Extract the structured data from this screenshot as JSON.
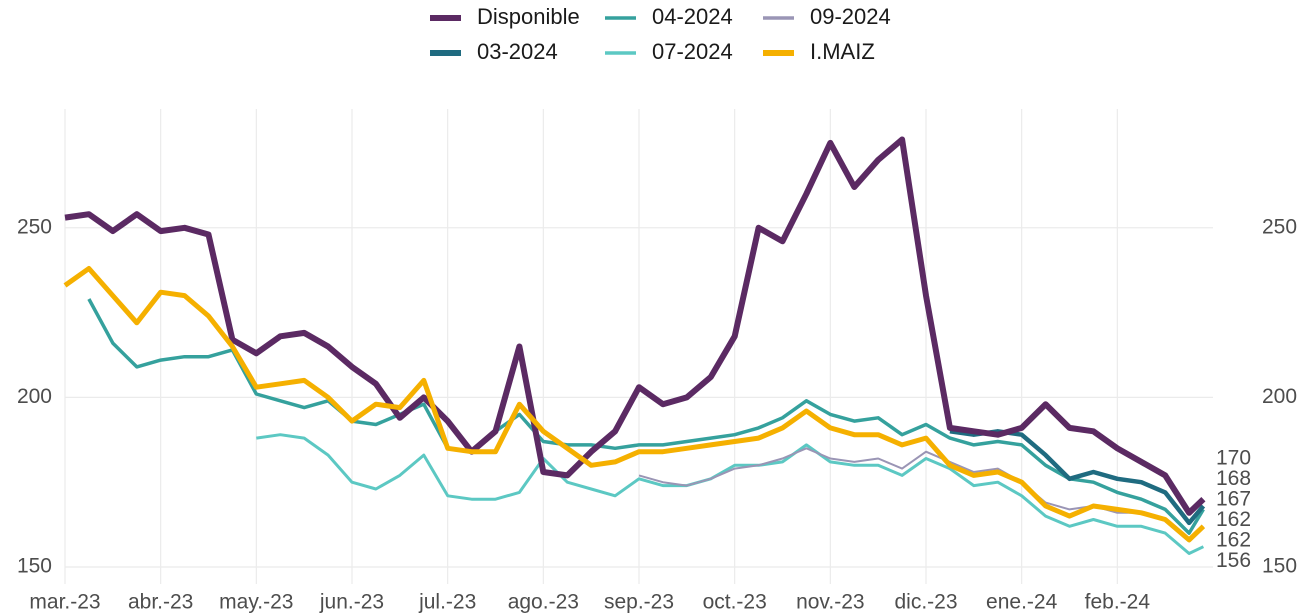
{
  "chart_data": {
    "type": "line",
    "x": [
      0,
      0.25,
      0.5,
      0.75,
      1,
      1.25,
      1.5,
      1.75,
      2,
      2.25,
      2.5,
      2.75,
      3,
      3.25,
      3.5,
      3.75,
      4,
      4.25,
      4.5,
      4.75,
      5,
      5.25,
      5.5,
      5.75,
      6,
      6.25,
      6.5,
      6.75,
      7,
      7.25,
      7.5,
      7.75,
      8,
      8.25,
      8.5,
      8.75,
      9,
      9.25,
      9.5,
      9.75,
      10,
      10.25,
      10.5,
      10.75,
      11,
      11.25,
      11.5,
      11.75,
      11.9
    ],
    "xlim": [
      0,
      12
    ],
    "xticks": [
      {
        "value": 0,
        "label": "mar.-23"
      },
      {
        "value": 1,
        "label": "abr.-23"
      },
      {
        "value": 2,
        "label": "may.-23"
      },
      {
        "value": 3,
        "label": "jun.-23"
      },
      {
        "value": 4,
        "label": "jul.-23"
      },
      {
        "value": 5,
        "label": "ago.-23"
      },
      {
        "value": 6,
        "label": "sep.-23"
      },
      {
        "value": 7,
        "label": "oct.-23"
      },
      {
        "value": 8,
        "label": "nov.-23"
      },
      {
        "value": 9,
        "label": "dic.-23"
      },
      {
        "value": 10,
        "label": "ene.-24"
      },
      {
        "value": 11,
        "label": "feb.-24"
      }
    ],
    "ylim": [
      145,
      285
    ],
    "yticks": [
      150,
      200,
      250
    ],
    "grid": true,
    "series": [
      {
        "name": "Disponible",
        "color": "#5b2a63",
        "values": [
          253,
          254,
          249,
          254,
          249,
          250,
          248,
          217,
          213,
          218,
          219,
          215,
          209,
          204,
          194,
          200,
          193,
          184,
          190,
          215,
          178,
          177,
          184,
          190,
          203,
          198,
          200,
          206,
          218,
          250,
          246,
          260,
          275,
          262,
          270,
          276,
          230,
          191,
          190,
          189,
          191,
          198,
          191,
          190,
          185,
          181,
          177,
          166,
          170
        ]
      },
      {
        "name": "03-2024",
        "color": "#1f6b80",
        "values": [
          null,
          null,
          null,
          null,
          null,
          null,
          null,
          null,
          null,
          null,
          null,
          null,
          null,
          null,
          null,
          null,
          null,
          null,
          null,
          null,
          null,
          null,
          null,
          null,
          null,
          null,
          null,
          null,
          null,
          null,
          null,
          null,
          null,
          null,
          null,
          null,
          null,
          190,
          189,
          190,
          189,
          183,
          176,
          178,
          176,
          175,
          172,
          163,
          168
        ]
      },
      {
        "name": "04-2024",
        "color": "#35a19d",
        "values": [
          null,
          229,
          216,
          209,
          211,
          212,
          212,
          214,
          201,
          199,
          197,
          199,
          193,
          192,
          195,
          198,
          185,
          184,
          190,
          195,
          187,
          186,
          186,
          185,
          186,
          186,
          187,
          188,
          189,
          191,
          194,
          199,
          195,
          193,
          194,
          189,
          192,
          188,
          186,
          187,
          186,
          180,
          176,
          175,
          172,
          170,
          167,
          160,
          167
        ]
      },
      {
        "name": "07-2024",
        "color": "#5cc8c3",
        "values": [
          null,
          null,
          null,
          null,
          null,
          null,
          null,
          null,
          188,
          189,
          188,
          183,
          175,
          173,
          177,
          183,
          171,
          170,
          170,
          172,
          182,
          175,
          173,
          171,
          176,
          174,
          174,
          176,
          180,
          180,
          181,
          186,
          181,
          180,
          180,
          177,
          182,
          179,
          174,
          175,
          171,
          165,
          162,
          164,
          162,
          162,
          160,
          154,
          156
        ]
      },
      {
        "name": "09-2024",
        "color": "#9a95b5",
        "values": [
          null,
          null,
          null,
          null,
          null,
          null,
          null,
          null,
          null,
          null,
          null,
          null,
          null,
          null,
          null,
          null,
          null,
          null,
          null,
          null,
          null,
          null,
          null,
          null,
          177,
          175,
          174,
          176,
          179,
          180,
          182,
          185,
          182,
          181,
          182,
          179,
          184,
          181,
          178,
          179,
          175,
          169,
          167,
          168,
          166,
          166,
          164,
          158,
          162
        ]
      },
      {
        "name": "I.MAIZ",
        "color": "#f5b000",
        "values": [
          233,
          238,
          230,
          222,
          231,
          230,
          224,
          215,
          203,
          204,
          205,
          200,
          193,
          198,
          197,
          205,
          185,
          184,
          184,
          198,
          190,
          185,
          180,
          181,
          184,
          184,
          185,
          186,
          187,
          188,
          191,
          196,
          191,
          189,
          189,
          186,
          188,
          180,
          177,
          178,
          175,
          168,
          165,
          168,
          167,
          166,
          164,
          158,
          162
        ]
      }
    ]
  }
}
